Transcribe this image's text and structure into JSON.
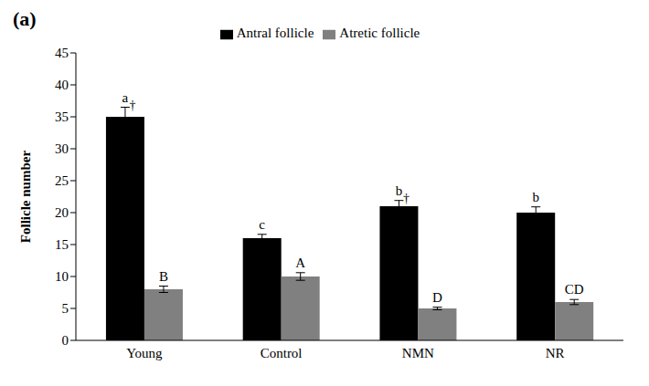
{
  "chart_data": {
    "type": "bar",
    "title": "(a)",
    "y_label": "Follicle number",
    "categories": [
      "Young",
      "Control",
      "NMN",
      "NR"
    ],
    "series": [
      {
        "name": "Antral follicle",
        "color": "#000000",
        "values": [
          35,
          16,
          21,
          20
        ],
        "errors": [
          1.5,
          0.6,
          0.9,
          0.9
        ],
        "letters": [
          "a",
          "c",
          "b",
          "b"
        ],
        "marks": [
          "†",
          null,
          "†",
          null
        ]
      },
      {
        "name": "Atretic follicle",
        "color": "#808080",
        "values": [
          8,
          10,
          5,
          6
        ],
        "errors": [
          0.5,
          0.6,
          0.2,
          0.4
        ],
        "letters": [
          "B",
          "A",
          "D",
          "CD"
        ]
      }
    ],
    "ylim": [
      0,
      45
    ],
    "yticks": [
      0,
      5,
      10,
      15,
      20,
      25,
      30,
      35,
      40,
      45
    ],
    "grid": false,
    "legend": "top"
  }
}
